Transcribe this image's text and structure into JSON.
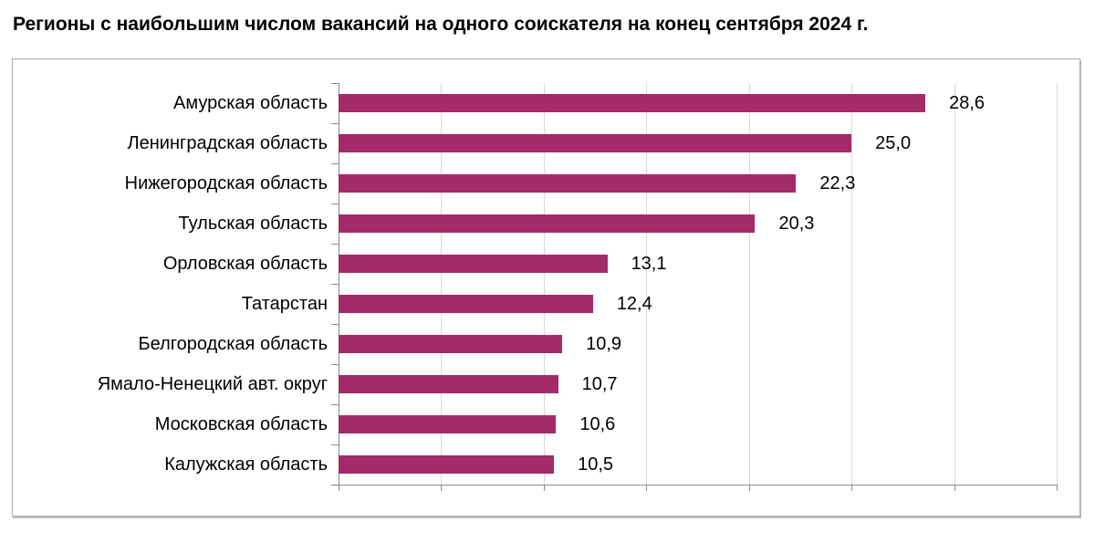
{
  "page": {
    "title": "Регионы с наибольшим числом вакансий на одного соискателя на конец сентября 2024 г."
  },
  "chart_data": {
    "type": "bar",
    "orientation": "horizontal",
    "title": "Регионы с наибольшим числом вакансий на одного соискателя на конец сентября 2024 г.",
    "categories": [
      "Амурская область",
      "Ленинградская область",
      "Нижегородская область",
      "Тульская область",
      "Орловская область",
      "Татарстан",
      "Белгородская область",
      "Ямало-Ненецкий авт. округ",
      "Московская область",
      "Калужская область"
    ],
    "values": [
      28.6,
      25.0,
      22.3,
      20.3,
      13.1,
      12.4,
      10.9,
      10.7,
      10.6,
      10.5
    ],
    "value_labels": [
      "28,6",
      "25,0",
      "22,3",
      "20,3",
      "13,1",
      "12,4",
      "10,9",
      "10,7",
      "10,6",
      "10,5"
    ],
    "xlabel": "",
    "ylabel": "",
    "xlim": [
      0,
      35
    ],
    "grid_step": 5,
    "grid": true,
    "legend": false,
    "bar_color": "#a42a68",
    "gridline_color": "#d9d9d9",
    "axis_color": "#8c8c8c"
  }
}
